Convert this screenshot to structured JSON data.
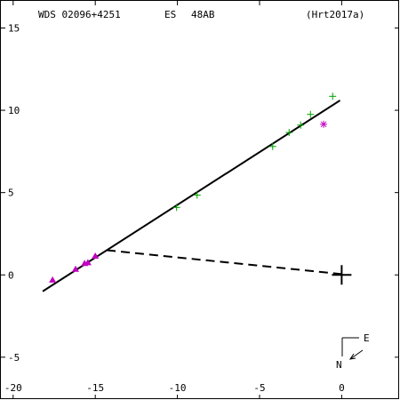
{
  "header": {
    "wds": "WDS 02096+4251",
    "discoverer": "ES",
    "pair": "48AB",
    "reference": "(Hrt2017a)"
  },
  "compass": {
    "east": "E",
    "north": "N"
  },
  "chart_data": {
    "type": "scatter",
    "title": "",
    "xlabel": "",
    "ylabel": "",
    "xlim": [
      -20.8,
      3.55
    ],
    "ylim": [
      -7.6,
      16.7
    ],
    "x_ticks": [
      -20,
      -15,
      -10,
      -5,
      0
    ],
    "y_ticks": [
      -5,
      0,
      5,
      10,
      15
    ],
    "primary": [
      0,
      0
    ],
    "colors": {
      "plus": "#00a000",
      "triangle": "#c000c0",
      "star": "#c000c0",
      "line": "#000000"
    },
    "orbit_line": {
      "from": [
        -18.2,
        -1.0
      ],
      "to": [
        -0.1,
        10.6
      ]
    },
    "connector": {
      "from": [
        -14.3,
        1.5
      ],
      "to": [
        0,
        0.05
      ]
    },
    "series": [
      {
        "marker": "plus",
        "points": [
          [
            -0.55,
            10.85
          ],
          [
            -1.9,
            9.75
          ],
          [
            -2.5,
            9.1
          ],
          [
            -3.2,
            8.65
          ],
          [
            -4.2,
            7.8
          ],
          [
            -8.8,
            4.85
          ],
          [
            -10.05,
            4.1
          ]
        ]
      },
      {
        "marker": "triangle",
        "points": [
          [
            -15.0,
            1.15
          ],
          [
            -15.45,
            0.75
          ],
          [
            -15.65,
            0.7
          ],
          [
            -16.2,
            0.35
          ],
          [
            -17.6,
            -0.3
          ]
        ]
      },
      {
        "marker": "star",
        "points": [
          [
            -1.1,
            9.15
          ]
        ]
      }
    ]
  }
}
